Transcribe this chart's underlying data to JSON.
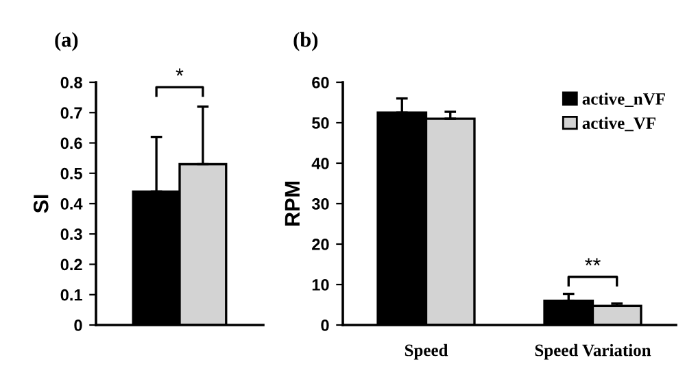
{
  "chart_data": [
    {
      "type": "bar",
      "title": "(a)",
      "ylabel": "SI",
      "categories": [
        null
      ],
      "series": [
        {
          "color": "#000000",
          "values": [
            0.44
          ],
          "errors": [
            [
              0.44,
              0.62
            ]
          ]
        },
        {
          "color": "#d3d3d3",
          "values": [
            0.53
          ],
          "errors": [
            [
              0.53,
              0.72
            ]
          ]
        }
      ],
      "ylim": [
        0,
        0.8
      ],
      "yticks": [
        0,
        0.1,
        0.2,
        0.3,
        0.4,
        0.5,
        0.6,
        0.7,
        0.8
      ],
      "grid": false,
      "legend": false,
      "annotations": [
        "*"
      ]
    },
    {
      "type": "bar",
      "title": "(b)",
      "ylabel": "RPM",
      "categories": [
        "Speed",
        "Speed Variation"
      ],
      "series": [
        {
          "name": "active_nVF",
          "color": "#000000",
          "values": [
            52.5,
            6
          ],
          "errors": [
            [
              52.5,
              56
            ],
            [
              6,
              7.7
            ]
          ]
        },
        {
          "name": "active_VF",
          "color": "#d3d3d3",
          "values": [
            51,
            4.7
          ],
          "errors": [
            [
              51,
              52.7
            ],
            [
              4.7,
              5.3
            ]
          ]
        }
      ],
      "ylim": [
        0,
        60
      ],
      "yticks": [
        0,
        10,
        20,
        30,
        40,
        50,
        60
      ],
      "grid": false,
      "legend": "top right",
      "annotations": [
        "**"
      ]
    }
  ]
}
